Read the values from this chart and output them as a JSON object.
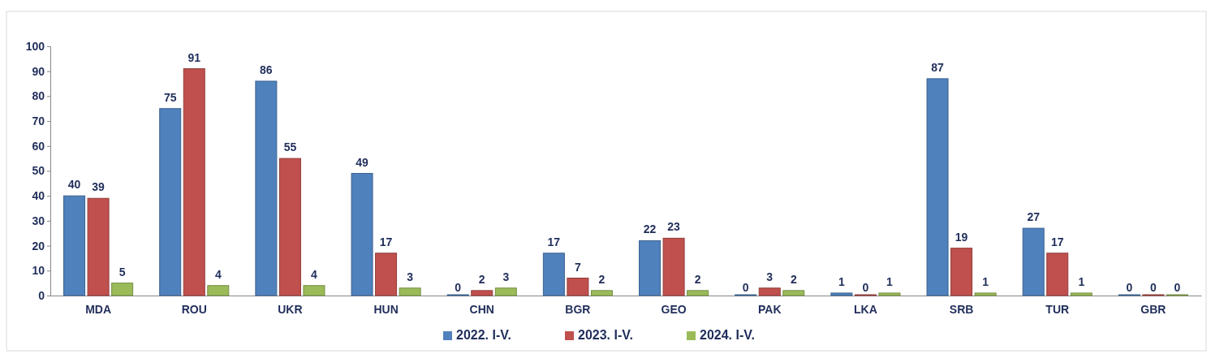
{
  "chart_data": {
    "type": "bar",
    "categories": [
      "MDA",
      "ROU",
      "UKR",
      "HUN",
      "CHN",
      "BGR",
      "GEO",
      "PAK",
      "LKA",
      "SRB",
      "TUR",
      "GBR"
    ],
    "series": [
      {
        "name": "2022. I-V.",
        "color": "#4f81bd",
        "values": [
          40,
          75,
          86,
          49,
          0,
          17,
          22,
          0,
          1,
          87,
          27,
          0
        ]
      },
      {
        "name": "2023. I-V.",
        "color": "#c0504d",
        "values": [
          39,
          91,
          55,
          17,
          2,
          7,
          23,
          3,
          0,
          19,
          17,
          0
        ]
      },
      {
        "name": "2024. I-V.",
        "color": "#9bbb59",
        "values": [
          5,
          4,
          4,
          3,
          3,
          2,
          2,
          2,
          1,
          1,
          1,
          0
        ]
      }
    ],
    "ylim": [
      0,
      100
    ],
    "yticks": [
      0,
      10,
      20,
      30,
      40,
      50,
      60,
      70,
      80,
      90,
      100
    ],
    "grid": false,
    "legend": "bottom",
    "data_labels": true
  }
}
